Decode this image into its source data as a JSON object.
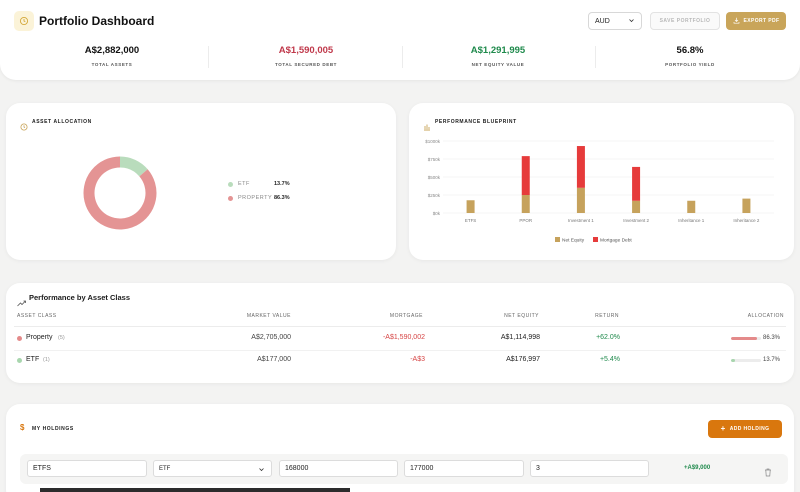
{
  "header": {
    "title": "Portfolio Dashboard",
    "currency": "AUD",
    "save_label": "SAVE PORTFOLIO",
    "export_label": "EXPORT PDF"
  },
  "stats": [
    {
      "value": "A$2,882,000",
      "label": "TOTAL ASSETS",
      "color": "#111111"
    },
    {
      "value": "A$1,590,005",
      "label": "TOTAL SECURED DEBT",
      "color": "#c0394b"
    },
    {
      "value": "A$1,291,995",
      "label": "NET EQUITY VALUE",
      "color": "#1f8a4c"
    },
    {
      "value": "56.8%",
      "label": "PORTFOLIO YIELD",
      "color": "#111111"
    }
  ],
  "allocation": {
    "title": "ASSET ALLOCATION",
    "items": [
      {
        "name": "ETF",
        "percent": "13.7%",
        "share": 0.137,
        "color": "#b9dcbc"
      },
      {
        "name": "PROPERTY",
        "percent": "86.3%",
        "share": 0.863,
        "color": "#e49494"
      }
    ]
  },
  "blueprint": {
    "title": "PERFORMANCE BLUEPRINT",
    "chart_data": {
      "type": "bar",
      "stacked": true,
      "categories": [
        "ETFS",
        "PPOR",
        "Investment 1",
        "Investment 2",
        "Inheritance 1",
        "Inheritance 2"
      ],
      "series": [
        {
          "name": "Net Equity",
          "color": "#c6a25c",
          "values": [
            177000,
            250000,
            350000,
            170000,
            170000,
            200000
          ]
        },
        {
          "name": "Mortgage Debt",
          "color": "#e63b3b",
          "values": [
            0,
            540000,
            580000,
            470000,
            0,
            0
          ]
        }
      ],
      "ytick_labels": [
        "$0k",
        "$250k",
        "$500k",
        "$750k",
        "$1000k"
      ],
      "ylim": [
        0,
        1000000
      ],
      "grid": true,
      "legend": "bottom"
    }
  },
  "performance": {
    "title": "Performance by Asset Class",
    "columns": [
      "ASSET CLASS",
      "MARKET VALUE",
      "MORTGAGE",
      "NET EQUITY",
      "RETURN",
      "ALLOCATION"
    ],
    "rows": [
      {
        "name": "Property",
        "count": "(5)",
        "market": "A$2,705,000",
        "mortgage": "-A$1,590,002",
        "equity": "A$1,114,998",
        "return": "+62.0%",
        "allocation": "86.3%",
        "alloc_share": 0.863,
        "dot": "#e48a8a"
      },
      {
        "name": "ETF",
        "count": "(1)",
        "market": "A$177,000",
        "mortgage": "-A$3",
        "equity": "A$176,997",
        "return": "+5.4%",
        "allocation": "13.7%",
        "alloc_share": 0.137,
        "dot": "#a8d6ae"
      }
    ]
  },
  "holdings": {
    "title": "MY HOLDINGS",
    "add_label": "ADD HOLDING",
    "row": {
      "name": "ETFS",
      "type": "ETF",
      "cost": "168000",
      "value": "177000",
      "qty": "3",
      "gain": "+A$9,000"
    }
  }
}
